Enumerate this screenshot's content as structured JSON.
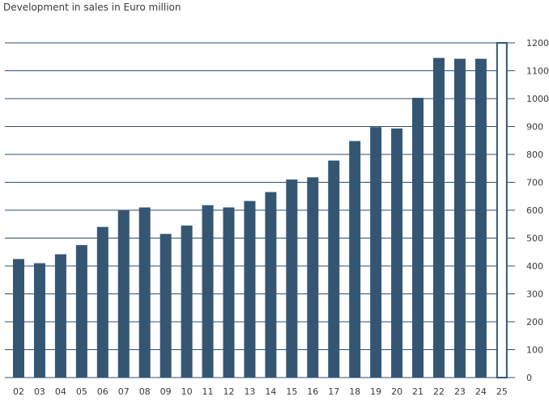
{
  "chart_data": {
    "type": "bar",
    "title": "Development in sales in Euro million",
    "categories": [
      "02",
      "03",
      "04",
      "05",
      "06",
      "07",
      "08",
      "09",
      "10",
      "11",
      "12",
      "13",
      "14",
      "15",
      "16",
      "17",
      "18",
      "19",
      "20",
      "21",
      "22",
      "23",
      "24",
      "25"
    ],
    "values": [
      425,
      410,
      442,
      475,
      540,
      600,
      610,
      515,
      545,
      618,
      610,
      633,
      665,
      710,
      718,
      778,
      848,
      898,
      893,
      1003,
      1146,
      1143,
      1143,
      1200
    ],
    "highlight_last": true,
    "yticks": [
      0,
      100,
      200,
      300,
      400,
      500,
      600,
      700,
      800,
      900,
      1000,
      1100,
      1200
    ],
    "ylim": [
      0,
      1200
    ],
    "y_axis_side": "right",
    "grid": true,
    "xlabel": "",
    "ylabel": "",
    "colors": {
      "bar": "#355673",
      "last_bar_fill": "#ffffff",
      "last_bar_stroke": "#355673",
      "grid": "#2f4f6b",
      "text": "#3a3a3a"
    }
  }
}
